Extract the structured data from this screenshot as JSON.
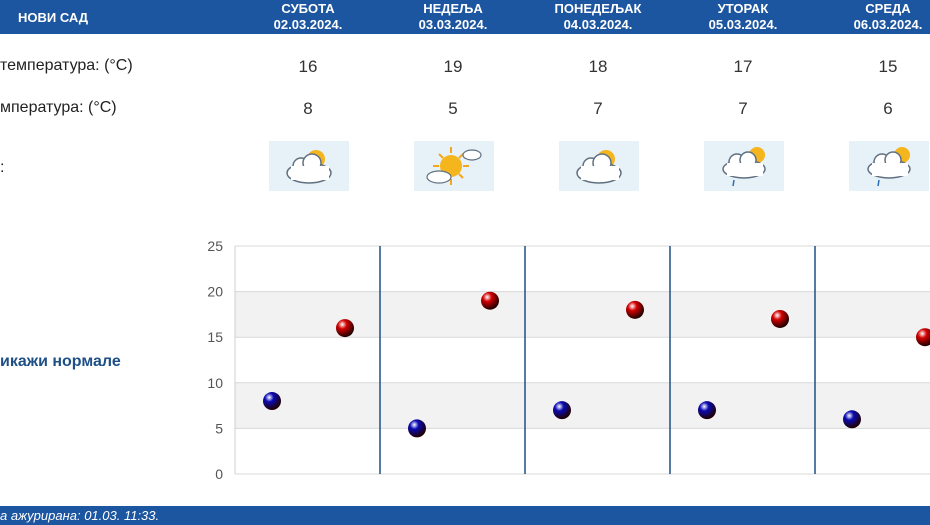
{
  "header": {
    "city": "НОВИ САД",
    "days": [
      {
        "name": "СУБОТА",
        "date": "02.03.2024."
      },
      {
        "name": "НЕДЕЉА",
        "date": "03.03.2024."
      },
      {
        "name": "ПОНЕДЕЉАК",
        "date": "04.03.2024."
      },
      {
        "name": "УТОРАК",
        "date": "05.03.2024."
      },
      {
        "name": "СРЕДА",
        "date": "06.03.2024."
      }
    ]
  },
  "rows": {
    "max_label": "температура: (°C)",
    "min_label": "мпература: (°C)",
    "icon_label": ":"
  },
  "max_temps": [
    "16",
    "19",
    "18",
    "17",
    "15"
  ],
  "min_temps": [
    "8",
    "5",
    "7",
    "7",
    "6"
  ],
  "icons": [
    "partly-cloudy-icon",
    "sunny-cloud-icon",
    "partly-cloudy-icon",
    "partly-cloudy-rain-icon",
    "partly-cloudy-rain-icon"
  ],
  "normals_link": "икажи нормале",
  "footer": {
    "updated": "а ажурирана:  01.03. 11:33."
  },
  "colors": {
    "header_bg": "#1d56a0",
    "max_dot": "#d40000",
    "min_dot": "#0a0ab4",
    "grid_band": "#f2f2f2",
    "separator": "#1e4f86"
  },
  "chart_data": {
    "type": "scatter",
    "categories": [
      "02.03.2024.",
      "03.03.2024.",
      "04.03.2024.",
      "05.03.2024.",
      "06.03.2024."
    ],
    "series": [
      {
        "values": [
          8,
          5,
          7,
          7,
          6
        ]
      },
      {
        "values": [
          16,
          19,
          18,
          17,
          15
        ]
      }
    ],
    "ylim": [
      0,
      25
    ],
    "yticks": [
      "0",
      "5",
      "10",
      "15",
      "20",
      "25"
    ],
    "grid": true
  }
}
